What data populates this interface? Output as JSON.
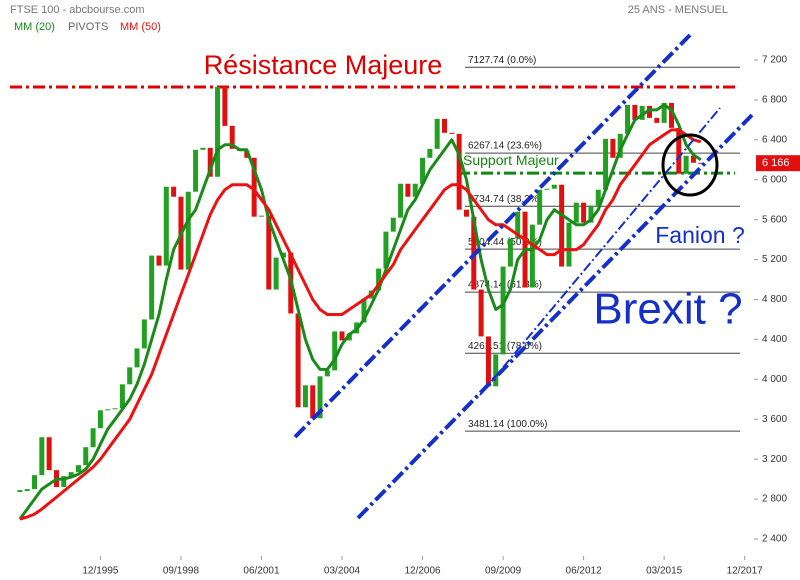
{
  "chart_data": {
    "type": "candlestick",
    "title": "FTSE 100 - abcbourse.com",
    "subtitle": "25 ANS - MENSUEL",
    "pivots_label": "PIVOTS",
    "x": [
      "03/1993",
      "06/1993",
      "09/1993",
      "12/1993",
      "03/1994",
      "06/1994",
      "09/1994",
      "12/1994",
      "03/1995",
      "06/1995",
      "09/1995",
      "12/1995",
      "03/1996",
      "06/1996",
      "09/1996",
      "12/1996",
      "03/1997",
      "06/1997",
      "09/1997",
      "12/1997",
      "03/1998",
      "06/1998",
      "09/1998",
      "12/1998",
      "03/1999",
      "06/1999",
      "09/1999",
      "12/1999",
      "03/2000",
      "06/2000",
      "09/2000",
      "12/2000",
      "03/2001",
      "06/2001",
      "09/2001",
      "12/2001",
      "03/2002",
      "06/2002",
      "09/2002",
      "12/2002",
      "03/2003",
      "06/2003",
      "09/2003",
      "12/2003",
      "03/2004",
      "06/2004",
      "09/2004",
      "12/2004",
      "03/2005",
      "06/2005",
      "09/2005",
      "12/2005",
      "03/2006",
      "06/2006",
      "09/2006",
      "12/2006",
      "03/2007",
      "06/2007",
      "09/2007",
      "12/2007",
      "03/2008",
      "06/2008",
      "09/2008",
      "12/2008",
      "03/2009",
      "06/2009",
      "09/2009",
      "12/2009",
      "03/2010",
      "06/2010",
      "09/2010",
      "12/2010",
      "03/2011",
      "06/2011",
      "09/2011",
      "12/2011",
      "03/2012",
      "06/2012",
      "09/2012",
      "12/2012",
      "03/2013",
      "06/2013",
      "09/2013",
      "12/2013",
      "03/2014",
      "06/2014",
      "09/2014",
      "12/2014",
      "03/2015",
      "06/2015",
      "09/2015",
      "12/2015",
      "03/2016",
      "06/2016"
    ],
    "values": [
      2880,
      2900,
      3040,
      3420,
      3090,
      2920,
      3030,
      3070,
      3140,
      3320,
      3510,
      3690,
      3700,
      3710,
      3950,
      4120,
      4310,
      4600,
      5240,
      5140,
      5930,
      5830,
      5100,
      5880,
      6300,
      6320,
      6030,
      6930,
      6540,
      6310,
      6290,
      6220,
      5630,
      5640,
      4900,
      5220,
      5270,
      4660,
      3720,
      3940,
      3610,
      4030,
      4090,
      4480,
      4390,
      4460,
      4570,
      4810,
      4890,
      5110,
      5480,
      5620,
      5960,
      5830,
      5960,
      6220,
      6310,
      6610,
      6470,
      6460,
      5700,
      5630,
      4900,
      4430,
      3930,
      4250,
      5130,
      5410,
      5680,
      4920,
      5550,
      5900,
      5910,
      5950,
      5130,
      5570,
      5770,
      5570,
      5740,
      5900,
      6410,
      6220,
      6460,
      6750,
      6600,
      6740,
      6620,
      6570,
      6770,
      6520,
      6060,
      6240,
      6170,
      6166
    ],
    "up_color": "#22a022",
    "down_color": "#e01010",
    "last_price": 6166,
    "last_price_label": "6 166",
    "series": [
      {
        "name": "MM (20)",
        "color": "#1a8a1a",
        "values": [
          2600,
          2700,
          2800,
          2900,
          2950,
          3000,
          3000,
          3020,
          3050,
          3100,
          3200,
          3350,
          3500,
          3600,
          3700,
          3800,
          3950,
          4150,
          4400,
          4650,
          5000,
          5300,
          5450,
          5600,
          5700,
          5900,
          6100,
          6300,
          6350,
          6350,
          6300,
          6300,
          6100,
          5900,
          5600,
          5400,
          5200,
          5000,
          4700,
          4400,
          4200,
          4100,
          4100,
          4200,
          4350,
          4450,
          4500,
          4600,
          4750,
          4900,
          5100,
          5300,
          5500,
          5700,
          5800,
          5950,
          6100,
          6200,
          6300,
          6400,
          6250,
          6000,
          5600,
          5200,
          4900,
          4700,
          4750,
          4900,
          5200,
          5300,
          5300,
          5400,
          5600,
          5700,
          5650,
          5600,
          5550,
          5550,
          5600,
          5700,
          5900,
          6100,
          6300,
          6450,
          6600,
          6650,
          6700,
          6700,
          6750,
          6700,
          6550,
          6350,
          6250,
          6200
        ]
      },
      {
        "name": "MM (50)",
        "color": "#ee1111",
        "values": [
          2600,
          2620,
          2650,
          2700,
          2760,
          2820,
          2880,
          2940,
          3000,
          3060,
          3120,
          3200,
          3300,
          3400,
          3500,
          3600,
          3750,
          3900,
          4050,
          4250,
          4450,
          4650,
          4850,
          5050,
          5250,
          5450,
          5650,
          5800,
          5900,
          5950,
          5950,
          5950,
          5900,
          5800,
          5700,
          5550,
          5400,
          5250,
          5100,
          4950,
          4800,
          4700,
          4650,
          4650,
          4650,
          4700,
          4750,
          4800,
          4850,
          4950,
          5050,
          5150,
          5300,
          5400,
          5500,
          5600,
          5700,
          5800,
          5900,
          5950,
          5950,
          5900,
          5800,
          5700,
          5600,
          5550,
          5550,
          5500,
          5450,
          5400,
          5350,
          5300,
          5250,
          5250,
          5300,
          5300,
          5300,
          5350,
          5450,
          5550,
          5700,
          5800,
          5950,
          6050,
          6150,
          6250,
          6350,
          6400,
          6450,
          6500,
          6500,
          6450,
          6400,
          6380
        ]
      }
    ],
    "resistance": {
      "label": "Résistance Majeure",
      "value": 6930,
      "color": "#dd0000"
    },
    "support": {
      "label": "Support Majeur",
      "value": 6067,
      "color": "#118811"
    },
    "fib_levels": [
      {
        "value": 7127.74,
        "label": "7127.74 (0.0%)"
      },
      {
        "value": 6267.14,
        "label": "6267.14 (23.6%)"
      },
      {
        "value": 5734.74,
        "label": "5734.74 (38.2%)"
      },
      {
        "value": 5304.44,
        "label": "5304.44 (50.0%)"
      },
      {
        "value": 4874.14,
        "label": "4874.14 (61.8%)"
      },
      {
        "value": 4261.51,
        "label": "4261.51 (78.6%)"
      },
      {
        "value": 3481.14,
        "label": "3481.14 (100.0%)"
      }
    ],
    "annotations": [
      "Fanion ?",
      "Brexit ?"
    ],
    "xlim": [
      "01/1993",
      "03/2018"
    ],
    "xticks": [
      "12/1995",
      "09/1998",
      "06/2001",
      "03/2004",
      "12/2006",
      "09/2009",
      "06/2012",
      "03/2015",
      "12/2017"
    ],
    "ylim": [
      2400,
      7200
    ],
    "yticks": [
      {
        "value": 2400,
        "label": "2 400"
      },
      {
        "value": 2800,
        "label": "2 800"
      },
      {
        "value": 3200,
        "label": "3 200"
      },
      {
        "value": 3600,
        "label": "3 600"
      },
      {
        "value": 4000,
        "label": "4 000"
      },
      {
        "value": 4400,
        "label": "4 400"
      },
      {
        "value": 4800,
        "label": "4 800"
      },
      {
        "value": 5200,
        "label": "5 200"
      },
      {
        "value": 5600,
        "label": "5 600"
      },
      {
        "value": 6000,
        "label": "6 000"
      },
      {
        "value": 6400,
        "label": "6 400"
      },
      {
        "value": 6800,
        "label": "6 800"
      },
      {
        "value": 7200,
        "label": "7 200"
      }
    ]
  }
}
